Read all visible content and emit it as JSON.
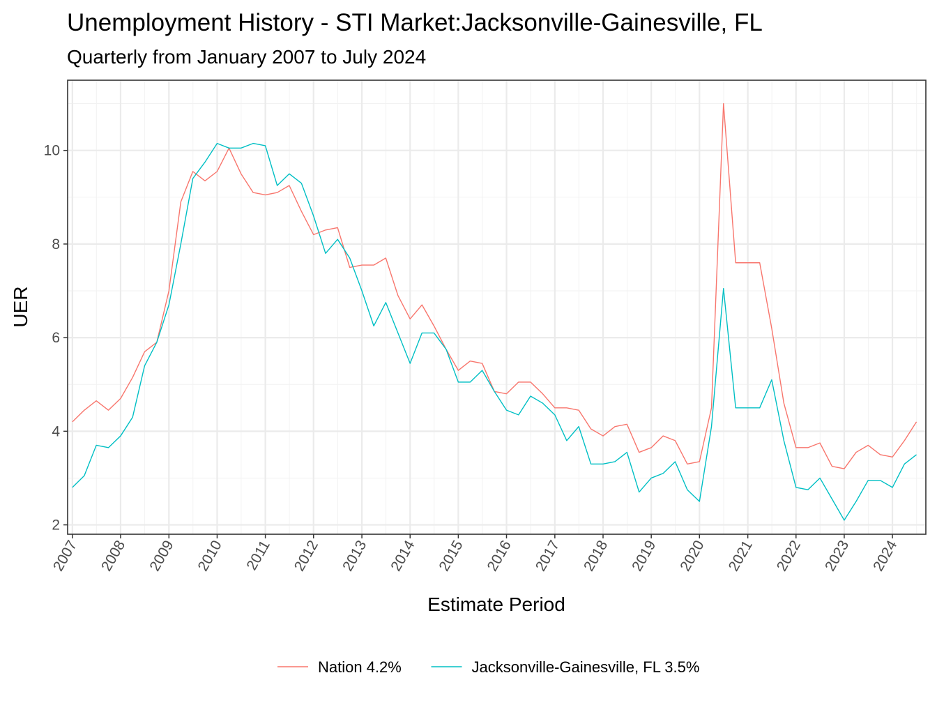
{
  "chart_data": {
    "type": "line",
    "title": "Unemployment History - STI Market:Jacksonville-Gainesville, FL",
    "subtitle": "Quarterly from January 2007 to July 2024",
    "xlabel": "Estimate Period",
    "ylabel": "UER",
    "x_ticks": [
      "2007",
      "2008",
      "2009",
      "2010",
      "2011",
      "2012",
      "2013",
      "2014",
      "2015",
      "2016",
      "2017",
      "2018",
      "2019",
      "2020",
      "2021",
      "2022",
      "2023",
      "2024"
    ],
    "y_ticks": [
      2,
      4,
      6,
      8,
      10
    ],
    "ylim": [
      1.8,
      11.5
    ],
    "xlim": [
      "2006-11-26",
      "2024-09-10"
    ],
    "grid": true,
    "legend_position": "bottom",
    "dates": [
      "2007-01",
      "2007-04",
      "2007-07",
      "2007-10",
      "2008-01",
      "2008-04",
      "2008-07",
      "2008-10",
      "2009-01",
      "2009-04",
      "2009-07",
      "2009-10",
      "2010-01",
      "2010-04",
      "2010-07",
      "2010-10",
      "2011-01",
      "2011-04",
      "2011-07",
      "2011-10",
      "2012-01",
      "2012-04",
      "2012-07",
      "2012-10",
      "2013-01",
      "2013-04",
      "2013-07",
      "2013-10",
      "2014-01",
      "2014-04",
      "2014-07",
      "2014-10",
      "2015-01",
      "2015-04",
      "2015-07",
      "2015-10",
      "2016-01",
      "2016-04",
      "2016-07",
      "2016-10",
      "2017-01",
      "2017-04",
      "2017-07",
      "2017-10",
      "2018-01",
      "2018-04",
      "2018-07",
      "2018-10",
      "2019-01",
      "2019-04",
      "2019-07",
      "2019-10",
      "2020-01",
      "2020-04",
      "2020-07",
      "2020-10",
      "2021-01",
      "2021-04",
      "2021-07",
      "2021-10",
      "2022-01",
      "2022-04",
      "2022-07",
      "2022-10",
      "2023-01",
      "2023-04",
      "2023-07",
      "2023-10",
      "2024-01",
      "2024-04",
      "2024-07"
    ],
    "series": [
      {
        "name": "Nation 4.2%",
        "color": "#F8766D",
        "values": [
          4.2,
          4.45,
          4.65,
          4.45,
          4.7,
          5.15,
          5.7,
          5.9,
          7.0,
          8.9,
          9.55,
          9.35,
          9.55,
          10.05,
          9.5,
          9.1,
          9.05,
          9.1,
          9.25,
          8.7,
          8.2,
          8.3,
          8.35,
          7.5,
          7.55,
          7.55,
          7.7,
          6.9,
          6.4,
          6.7,
          6.25,
          5.75,
          5.3,
          5.5,
          5.45,
          4.85,
          4.8,
          5.05,
          5.05,
          4.8,
          4.5,
          4.5,
          4.45,
          4.05,
          3.9,
          4.1,
          4.15,
          3.55,
          3.65,
          3.9,
          3.8,
          3.3,
          3.35,
          4.5,
          11.0,
          7.6,
          7.6,
          7.6,
          6.2,
          4.6,
          3.65,
          3.65,
          3.75,
          3.25,
          3.2,
          3.55,
          3.7,
          3.5,
          3.45,
          3.8,
          4.2
        ]
      },
      {
        "name": "Jacksonville-Gainesville, FL 3.5%",
        "color": "#00BFC4",
        "values": [
          2.8,
          3.05,
          3.7,
          3.65,
          3.9,
          4.3,
          5.4,
          5.9,
          6.7,
          8.0,
          9.4,
          9.75,
          10.15,
          10.05,
          10.05,
          10.15,
          10.1,
          9.25,
          9.5,
          9.3,
          8.6,
          7.8,
          8.1,
          7.7,
          7.0,
          6.25,
          6.75,
          6.1,
          5.45,
          6.1,
          6.1,
          5.75,
          5.05,
          5.05,
          5.3,
          4.85,
          4.45,
          4.35,
          4.75,
          4.6,
          4.35,
          3.8,
          4.1,
          3.3,
          3.3,
          3.35,
          3.55,
          2.7,
          3.0,
          3.1,
          3.35,
          2.75,
          2.5,
          4.1,
          7.05,
          4.5,
          4.5,
          4.5,
          5.1,
          3.8,
          2.8,
          2.75,
          3.0,
          2.55,
          2.1,
          2.5,
          2.95,
          2.95,
          2.8,
          3.3,
          3.5
        ]
      }
    ]
  }
}
